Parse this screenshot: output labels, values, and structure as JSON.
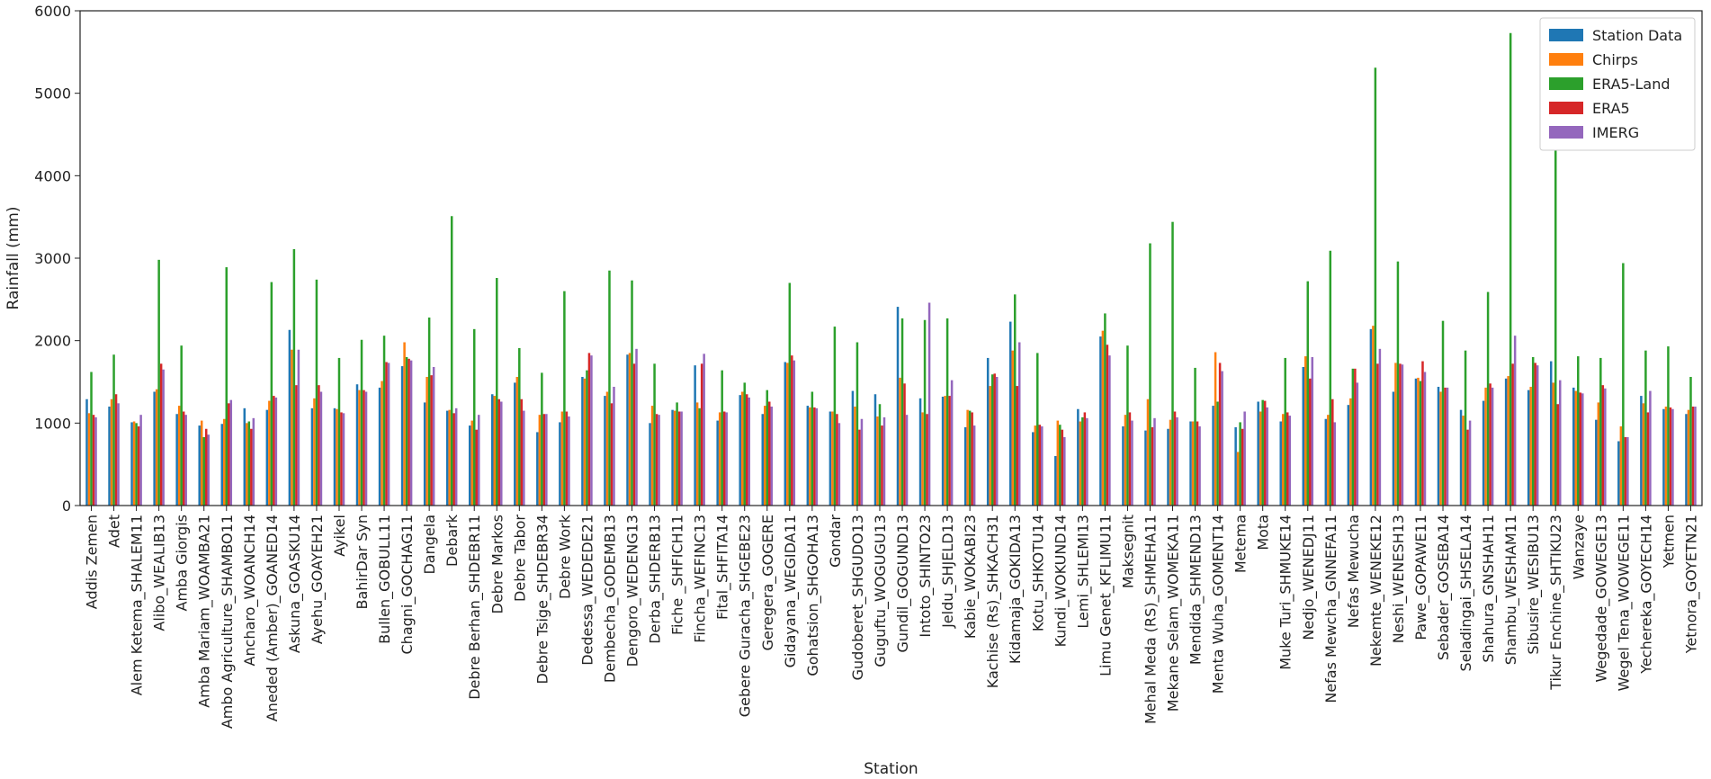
{
  "chart_data": {
    "type": "bar",
    "xlabel": "Station",
    "ylabel": "Rainfall (mm)",
    "ylim": [
      0,
      6000
    ],
    "yticks": [
      0,
      1000,
      2000,
      3000,
      4000,
      5000,
      6000
    ],
    "grid": false,
    "legend_position": "top-right",
    "categories": [
      "Addis Zemen",
      "Adet",
      "Alem Ketema_SHALEM11",
      "Alibo_WEALIB13",
      "Amba Giorgis",
      "Amba Mariam_WOAMBA21",
      "Ambo Agriculture_SHAMBO11",
      "Ancharo_WOANCH14",
      "Aneded (Amber)_GOANED14",
      "Askuna_GOASKU14",
      "Ayehu_GOAYEH21",
      "Ayikel",
      "BahirDar Syn",
      "Bullen_GOBULL11",
      "Chagni_GOCHAG11",
      "Dangela",
      "Debark",
      "Debre Berhan_SHDEBR11",
      "Debre Markos",
      "Debre Tabor",
      "Debre Tsige_SHDEBR34",
      "Debre Work",
      "Dedessa_WEDEDE21",
      "Dembecha_GODEMB13",
      "Dengoro_WEDENG13",
      "Derba_SHDERB13",
      "Fiche _SHFICH11",
      "Fincha_WEFINC13",
      "Fital_SHFITA14",
      "Gebere Guracha_SHGEBE23",
      "Geregera_GOGERE",
      "Gidayana_WEGIDA11",
      "Gohatsion_SHGOHA13",
      "Gondar",
      "Gudoberet_SHGUDO13",
      "Guguftu_WOGUGU13",
      "Gundil_GOGUND13",
      "Intoto_SHINTO23",
      "Jeldu_SHJELD13",
      "Kabie_WOKABI23",
      "Kachise (Rs)_SHKACH31",
      "Kidamaja_GOKIDA13",
      "Kotu_SHKOTU14",
      "Kundi_WOKUND14",
      "Lemi_SHLEMI13",
      "Limu Genet_KFLIMU11",
      "Maksegnit",
      "Mehal Meda (RS)_SHMEHA11",
      "Mekane Selam_WOMEKA11",
      "Mendida_SHMEND13",
      "Menta Wuha_GOMENT14",
      "Metema",
      "Mota",
      "Muke Turi_SHMUKE14",
      "Nedjo_WENEDJ11",
      "Nefas Mewcha_GNNEFA11",
      "Nefas Mewucha",
      "Nekemte_WENEKE12",
      "Neshi_WENESH13",
      "Pawe_GOPAWE11",
      "Sebader_GOSEBA14",
      "Seladingai_SHSELA14",
      "Shahura_GNSHAH11",
      "Shambu_WESHAM11",
      "Sibusire_WESIBU13",
      "Tikur Enchine_SHTIKU23",
      "Wanzaye",
      "Wegedade_GOWEGE13",
      "Wegel Tena_WOWEGE11",
      "Yechereka_GOYECH14",
      "Yetmen",
      "Yetnora_GOYETN21"
    ],
    "series": [
      {
        "name": "Station Data",
        "color": "#1f77b4",
        "values": [
          1290,
          1200,
          1010,
          1380,
          1110,
          970,
          990,
          1180,
          1160,
          2130,
          1180,
          1180,
          1470,
          1430,
          1690,
          1250,
          1150,
          970,
          1350,
          1490,
          890,
          1010,
          1560,
          1330,
          1830,
          1000,
          1160,
          1700,
          1030,
          1340,
          1110,
          1740,
          1210,
          1140,
          1390,
          1350,
          2410,
          1300,
          1320,
          950,
          1790,
          2230,
          890,
          600,
          1170,
          2050,
          960,
          910,
          930,
          1020,
          1210,
          950,
          1260,
          1020,
          1680,
          1050,
          1220,
          2140,
          1380,
          1540,
          1440,
          1160,
          1270,
          1540,
          1400,
          1750,
          1430,
          1040,
          780,
          1330,
          1170,
          1110
        ]
      },
      {
        "name": "Chirps",
        "color": "#ff7f0e",
        "values": [
          1120,
          1290,
          1020,
          1410,
          1210,
          1030,
          1050,
          1000,
          1270,
          1890,
          1300,
          1170,
          1400,
          1510,
          1980,
          1560,
          1160,
          1030,
          1330,
          1560,
          1100,
          1140,
          1540,
          1380,
          1850,
          1210,
          1150,
          1250,
          1130,
          1380,
          1210,
          1730,
          1190,
          1140,
          1200,
          1080,
          1550,
          1130,
          1330,
          1160,
          1450,
          1880,
          970,
          1030,
          1020,
          2120,
          1100,
          1290,
          1040,
          1020,
          1860,
          650,
          1140,
          1110,
          1810,
          1100,
          1300,
          2180,
          1730,
          1550,
          1380,
          1090,
          1430,
          1570,
          1440,
          1490,
          1390,
          1250,
          960,
          1240,
          1200,
          1160
        ]
      },
      {
        "name": "ERA5-Land",
        "color": "#2ca02c",
        "values": [
          1620,
          1830,
          1000,
          2980,
          1940,
          830,
          2890,
          1020,
          2710,
          3110,
          2740,
          1790,
          2010,
          2060,
          1800,
          2280,
          3510,
          2140,
          2760,
          1910,
          1610,
          2600,
          1640,
          2850,
          2730,
          1720,
          1250,
          1180,
          1640,
          1490,
          1400,
          2700,
          1380,
          2170,
          1980,
          1230,
          2270,
          2250,
          2270,
          1150,
          1590,
          2560,
          1850,
          980,
          1070,
          2330,
          1940,
          3180,
          3440,
          1670,
          1260,
          1010,
          1280,
          1790,
          2720,
          3090,
          1660,
          5310,
          2960,
          1510,
          2240,
          1880,
          2590,
          5730,
          1800,
          4330,
          1810,
          1790,
          2940,
          1880,
          1930,
          1560
        ]
      },
      {
        "name": "ERA5",
        "color": "#d62728",
        "values": [
          1100,
          1350,
          960,
          1720,
          1140,
          930,
          1240,
          930,
          1330,
          1460,
          1460,
          1130,
          1400,
          1740,
          1780,
          1580,
          1120,
          920,
          1290,
          1290,
          1110,
          1140,
          1850,
          1240,
          1720,
          1110,
          1140,
          1720,
          1140,
          1350,
          1260,
          1820,
          1190,
          1110,
          920,
          970,
          1480,
          1110,
          1330,
          1130,
          1600,
          1450,
          980,
          920,
          1130,
          1950,
          1130,
          950,
          1140,
          1020,
          1730,
          930,
          1270,
          1130,
          1540,
          1290,
          1660,
          1720,
          1720,
          1750,
          1430,
          920,
          1480,
          1720,
          1730,
          1230,
          1370,
          1460,
          830,
          1130,
          1190,
          1200
        ]
      },
      {
        "name": "IMERG",
        "color": "#9467bd",
        "values": [
          1070,
          1240,
          1100,
          1650,
          1100,
          860,
          1280,
          1060,
          1310,
          1890,
          1380,
          1120,
          1380,
          1730,
          1760,
          1680,
          1180,
          1100,
          1260,
          1150,
          1110,
          1080,
          1820,
          1440,
          1900,
          1100,
          1140,
          1840,
          1130,
          1310,
          1200,
          1760,
          1180,
          1000,
          1050,
          1070,
          1100,
          2460,
          1520,
          970,
          1560,
          1980,
          960,
          830,
          1060,
          1820,
          1030,
          1060,
          1070,
          960,
          1630,
          1140,
          1190,
          1090,
          1800,
          1010,
          1490,
          1900,
          1710,
          1620,
          1430,
          1030,
          1430,
          2060,
          1700,
          1520,
          1360,
          1420,
          830,
          1390,
          1170,
          1200
        ]
      }
    ]
  }
}
